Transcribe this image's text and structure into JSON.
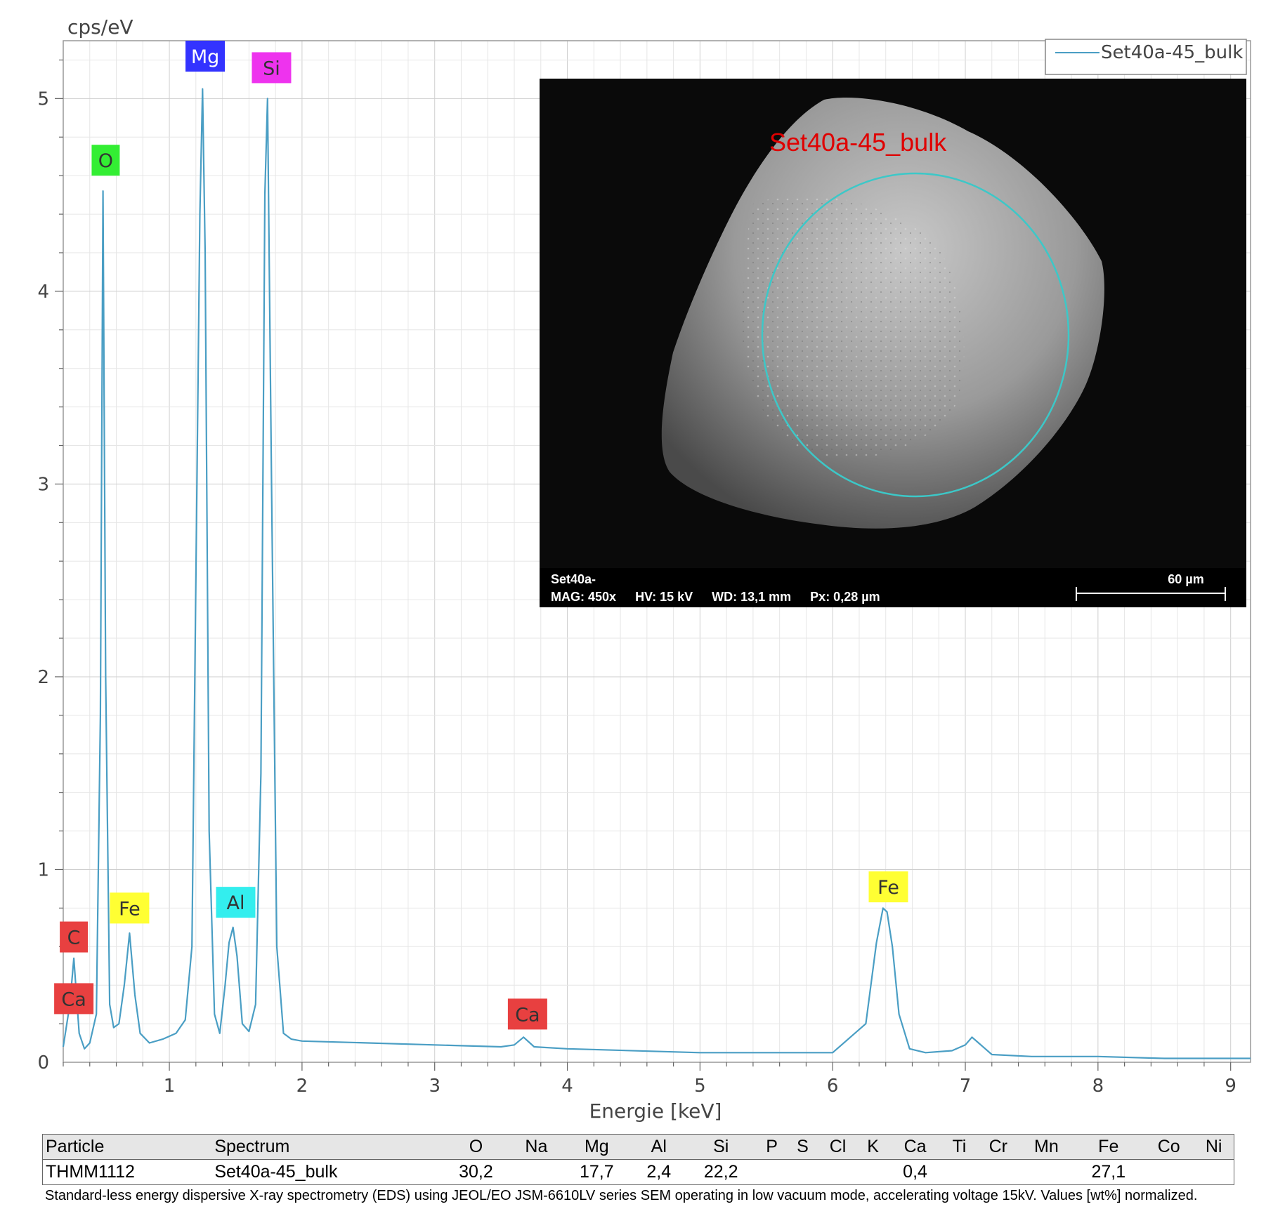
{
  "chart_data": {
    "type": "line",
    "ylabel": "cps/eV",
    "xlabel": "Energie [keV]",
    "xlim": [
      0.2,
      9.15
    ],
    "ylim": [
      0,
      5.3
    ],
    "x_ticks": [
      1,
      2,
      3,
      4,
      5,
      6,
      7,
      8,
      9
    ],
    "y_ticks": [
      0,
      1,
      2,
      3,
      4,
      5
    ],
    "grid": true,
    "legend_position": "top-right",
    "series": [
      {
        "name": "Set40a-45_bulk",
        "color": "#4a9ec4",
        "x": [
          0.2,
          0.25,
          0.28,
          0.32,
          0.36,
          0.4,
          0.45,
          0.48,
          0.5,
          0.52,
          0.55,
          0.58,
          0.62,
          0.66,
          0.7,
          0.74,
          0.78,
          0.85,
          0.95,
          1.05,
          1.12,
          1.17,
          1.2,
          1.23,
          1.25,
          1.27,
          1.3,
          1.34,
          1.38,
          1.42,
          1.45,
          1.48,
          1.51,
          1.55,
          1.6,
          1.65,
          1.69,
          1.72,
          1.74,
          1.77,
          1.81,
          1.86,
          1.92,
          2.0,
          2.5,
          3.0,
          3.5,
          3.6,
          3.67,
          3.75,
          4.0,
          5.0,
          6.0,
          6.25,
          6.33,
          6.38,
          6.41,
          6.45,
          6.5,
          6.58,
          6.7,
          6.9,
          7.0,
          7.05,
          7.1,
          7.2,
          7.5,
          8.0,
          8.5,
          9.0,
          9.15
        ],
        "y": [
          0.08,
          0.3,
          0.54,
          0.15,
          0.07,
          0.1,
          0.25,
          1.8,
          4.52,
          2.0,
          0.3,
          0.18,
          0.2,
          0.4,
          0.67,
          0.35,
          0.15,
          0.1,
          0.12,
          0.15,
          0.22,
          0.6,
          2.5,
          4.4,
          5.05,
          4.2,
          1.2,
          0.25,
          0.15,
          0.4,
          0.62,
          0.7,
          0.55,
          0.2,
          0.16,
          0.3,
          1.5,
          4.5,
          5.0,
          3.0,
          0.6,
          0.15,
          0.12,
          0.11,
          0.1,
          0.09,
          0.08,
          0.09,
          0.13,
          0.08,
          0.07,
          0.05,
          0.05,
          0.2,
          0.62,
          0.8,
          0.78,
          0.6,
          0.25,
          0.07,
          0.05,
          0.06,
          0.09,
          0.13,
          0.1,
          0.04,
          0.03,
          0.03,
          0.02,
          0.02,
          0.02
        ]
      }
    ],
    "annotations": [
      {
        "label": "C",
        "x": 0.28,
        "y": 0.65,
        "color": "#e84040"
      },
      {
        "label": "Ca",
        "x": 0.28,
        "y": 0.33,
        "color": "#e84040"
      },
      {
        "label": "O",
        "x": 0.52,
        "y": 4.68,
        "color": "#33ee33"
      },
      {
        "label": "Fe",
        "x": 0.7,
        "y": 0.8,
        "color": "#ffff33"
      },
      {
        "label": "Mg",
        "x": 1.27,
        "y": 5.22,
        "color": "#3333ff"
      },
      {
        "label": "Al",
        "x": 1.5,
        "y": 0.83,
        "color": "#33eeee"
      },
      {
        "label": "Si",
        "x": 1.77,
        "y": 5.16,
        "color": "#ee33ee"
      },
      {
        "label": "Ca",
        "x": 3.7,
        "y": 0.25,
        "color": "#e84040"
      },
      {
        "label": "Fe",
        "x": 6.42,
        "y": 0.91,
        "color": "#ffff33"
      }
    ]
  },
  "sem": {
    "spectrum_label": "Set40a-45_bulk",
    "sample": "Set40a-",
    "mag": "MAG: 450x",
    "hv": "HV: 15 kV",
    "wd": "WD: 13,1 mm",
    "px": "Px: 0,28 µm",
    "scale_label": "60 µm"
  },
  "table": {
    "headers": [
      "Particle",
      "Spectrum",
      "O",
      "Na",
      "Mg",
      "Al",
      "Si",
      "P",
      "S",
      "Cl",
      "K",
      "Ca",
      "Ti",
      "Cr",
      "Mn",
      "Fe",
      "Co",
      "Ni"
    ],
    "row": [
      "THMM1112",
      "Set40a-45_bulk",
      "30,2",
      "",
      "17,7",
      "2,4",
      "22,2",
      "",
      "",
      "",
      "",
      "0,4",
      "",
      "",
      "",
      "27,1",
      "",
      ""
    ]
  },
  "footnote": "Standard-less energy dispersive X-ray spectrometry (EDS) using JEOL/EO JSM-6610LV series SEM operating in low vacuum mode, accelerating voltage 15kV. Values [wt%] normalized."
}
